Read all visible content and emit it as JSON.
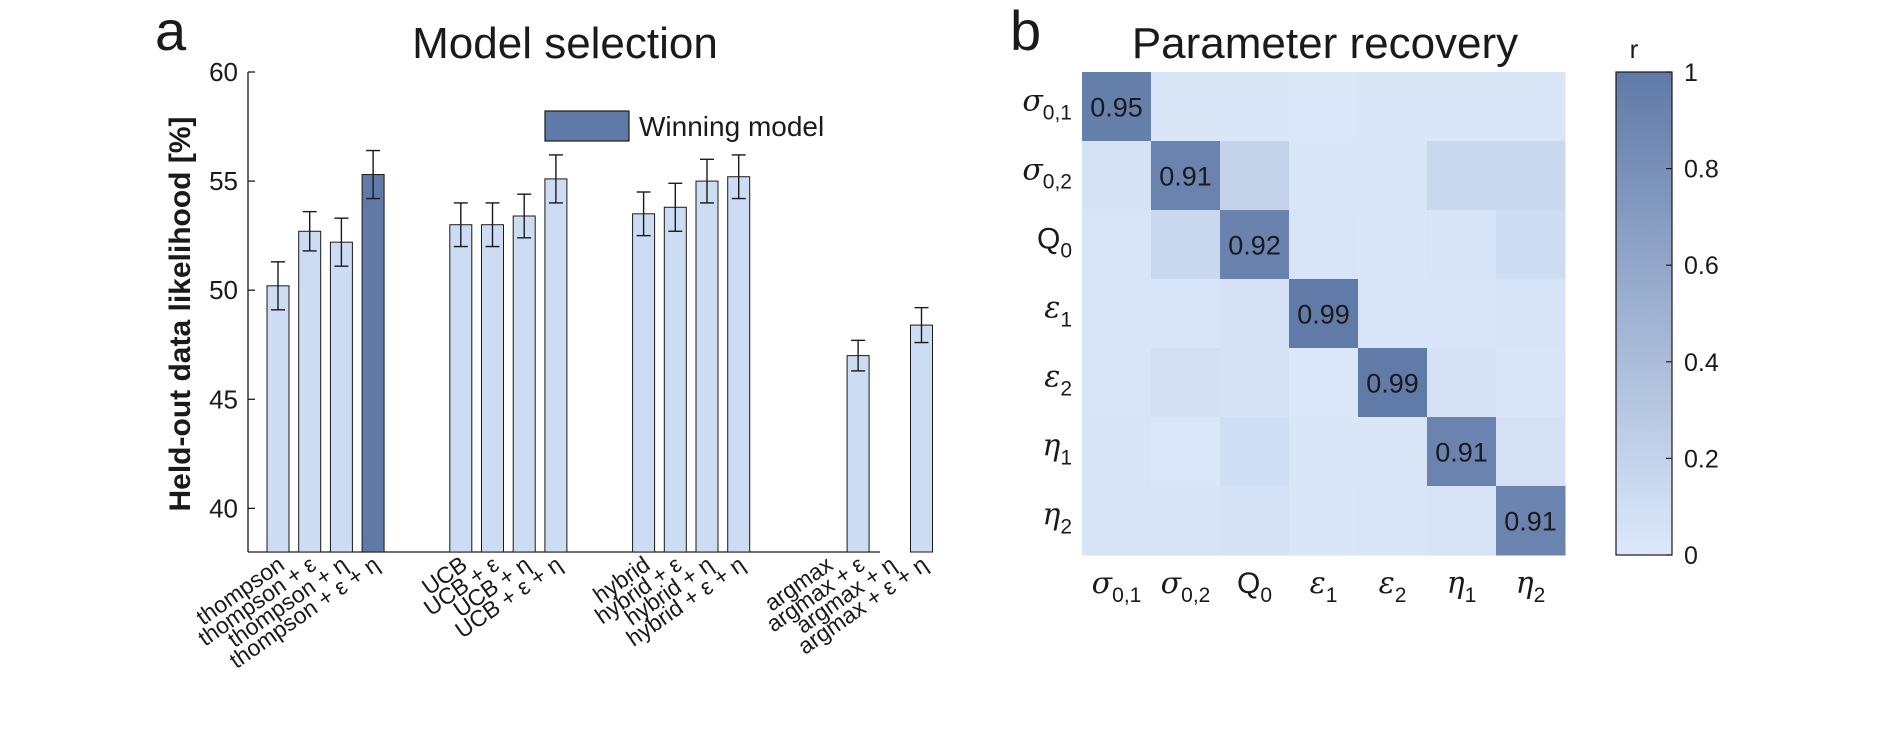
{
  "colors": {
    "bar": "#ccdcf3",
    "winning_bar": "#5f7aa7",
    "axis": "#1a1a1a",
    "heat_low": "#dde9fb",
    "heat_high": "#5f7aa7"
  },
  "chart_data": [
    {
      "panel_letter": "a",
      "type": "bar",
      "title": "Model selection",
      "ylabel": "Held-out data likelihood [%]",
      "ylim": [
        38,
        60
      ],
      "yticks": [
        "40",
        "45",
        "50",
        "55",
        "60"
      ],
      "legend": {
        "label": "Winning model",
        "placement": "top-right"
      },
      "categories": [
        "thompson",
        "thompson + ε",
        "thompson + η",
        "thompson + ε + η",
        "UCB",
        "UCB + ε",
        "UCB + η",
        "UCB + ε + η",
        "hybrid",
        "hybrid + ε",
        "hybrid + η",
        "hybrid + ε + η",
        "argmax",
        "argmax + ε",
        "argmax + η",
        "argmax + ε + η"
      ],
      "values": [
        50.2,
        52.7,
        52.2,
        55.3,
        53.0,
        53.0,
        53.4,
        55.1,
        53.5,
        53.8,
        55.0,
        55.2,
        null,
        47.0,
        null,
        48.4
      ],
      "errors": [
        1.1,
        0.9,
        1.1,
        1.1,
        1.0,
        1.0,
        1.0,
        1.1,
        1.0,
        1.1,
        1.0,
        1.0,
        null,
        0.7,
        null,
        0.8
      ],
      "winning": [
        false,
        false,
        false,
        true,
        false,
        false,
        false,
        false,
        false,
        false,
        false,
        false,
        false,
        false,
        false,
        false
      ],
      "grid": false
    },
    {
      "panel_letter": "b",
      "type": "heatmap",
      "title": "Parameter recovery",
      "colorbar_label": "r",
      "clim": [
        0,
        1
      ],
      "colorbar_ticks": [
        "0",
        "0.2",
        "0.4",
        "0.6",
        "0.8",
        "1"
      ],
      "rows": [
        {
          "sym": "σ",
          "sub": "0,1"
        },
        {
          "sym": "σ",
          "sub": "0,2"
        },
        {
          "sym": "Q",
          "sub": "0"
        },
        {
          "sym": "ε",
          "sub": "1"
        },
        {
          "sym": "ε",
          "sub": "2"
        },
        {
          "sym": "η",
          "sub": "1"
        },
        {
          "sym": "η",
          "sub": "2"
        }
      ],
      "cols": [
        {
          "sym": "σ",
          "sub": "0,1"
        },
        {
          "sym": "σ",
          "sub": "0,2"
        },
        {
          "sym": "Q",
          "sub": "0"
        },
        {
          "sym": "ε",
          "sub": "1"
        },
        {
          "sym": "ε",
          "sub": "2"
        },
        {
          "sym": "η",
          "sub": "1"
        },
        {
          "sym": "η",
          "sub": "2"
        }
      ],
      "values": [
        [
          0.95,
          0.03,
          0.03,
          0.02,
          0.03,
          0.03,
          0.03
        ],
        [
          0.06,
          0.91,
          0.2,
          0.03,
          0.03,
          0.15,
          0.15
        ],
        [
          0.04,
          0.15,
          0.92,
          0.04,
          0.03,
          0.05,
          0.12
        ],
        [
          0.04,
          0.04,
          0.06,
          0.99,
          0.04,
          0.04,
          0.05
        ],
        [
          0.04,
          0.09,
          0.06,
          0.02,
          0.99,
          0.06,
          0.04
        ],
        [
          0.05,
          0.02,
          0.1,
          0.03,
          0.03,
          0.91,
          0.06
        ],
        [
          0.05,
          0.05,
          0.06,
          0.03,
          0.04,
          0.05,
          0.91
        ]
      ],
      "annotations": [
        "0.95",
        "0.91",
        "0.92",
        "0.99",
        "0.99",
        "0.91",
        "0.91"
      ]
    }
  ]
}
